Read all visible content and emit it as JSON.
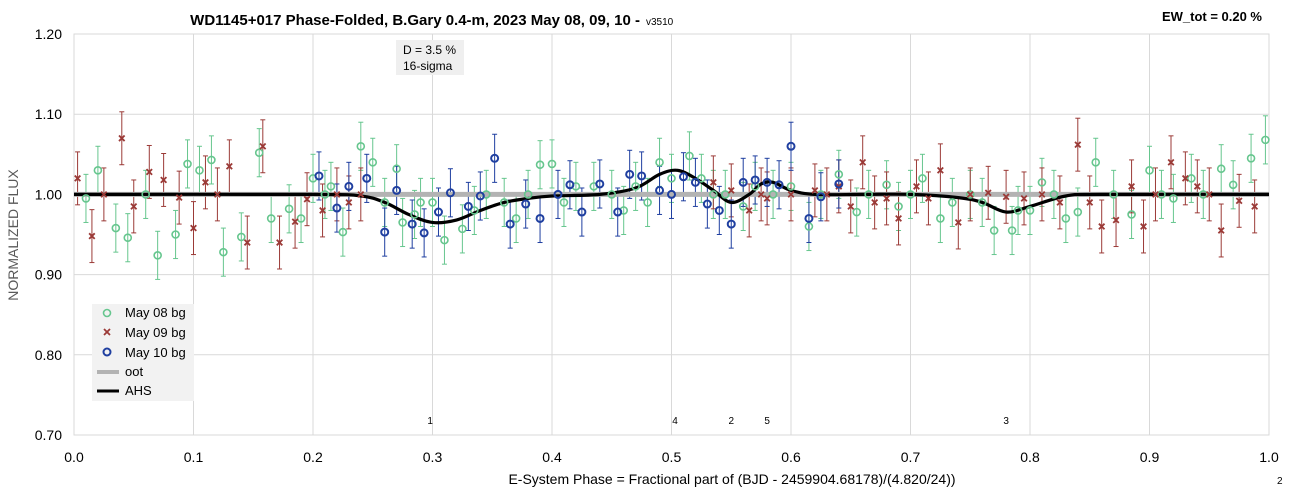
{
  "chart_data": {
    "type": "scatter",
    "title": "WD1145+017 Phase-Folded, B.Gary 0.4-m, 2023 May 08, 09, 10 -",
    "version_tag": "v3510",
    "ew_label": "EW_tot = 0.20 %",
    "xlabel": "E-System Phase = Fractional part of (BJD - 2459904.68178)/(4.820/24))",
    "ylabel": "NORMALIZED FLUX",
    "corner_note": "2",
    "xlim": [
      0.0,
      1.0
    ],
    "ylim": [
      0.7,
      1.2
    ],
    "x_ticks": [
      "0.0",
      "0.1",
      "0.2",
      "0.3",
      "0.4",
      "0.5",
      "0.6",
      "0.7",
      "0.8",
      "0.9",
      "1.0"
    ],
    "y_ticks": [
      "0.70",
      "0.80",
      "0.90",
      "1.00",
      "1.10",
      "1.20"
    ],
    "grid": true,
    "legend_position": "bottom-left",
    "annotation": {
      "line1": "D = 3.5 %",
      "line2": "16-sigma",
      "x": 0.3
    },
    "dip_markers": [
      {
        "label": "1",
        "x": 0.298
      },
      {
        "label": "4",
        "x": 0.503
      },
      {
        "label": "2",
        "x": 0.55
      },
      {
        "label": "5",
        "x": 0.58
      },
      {
        "label": "3",
        "x": 0.78
      }
    ],
    "colors": {
      "may08": "#66c68e",
      "may09": "#9b3a37",
      "may10": "#1f3fa0",
      "oot": "#b3b3b3",
      "ahs": "#000000"
    },
    "series": [
      {
        "name": "May 08 bg",
        "marker": "circle",
        "err": 0.03,
        "points": [
          [
            0.01,
            0.995
          ],
          [
            0.02,
            1.03
          ],
          [
            0.035,
            0.958
          ],
          [
            0.045,
            0.946
          ],
          [
            0.06,
            1.0
          ],
          [
            0.07,
            0.924
          ],
          [
            0.085,
            0.95
          ],
          [
            0.095,
            1.038
          ],
          [
            0.105,
            1.03
          ],
          [
            0.115,
            1.043
          ],
          [
            0.125,
            0.928
          ],
          [
            0.14,
            0.947
          ],
          [
            0.155,
            1.052
          ],
          [
            0.165,
            0.97
          ],
          [
            0.18,
            0.982
          ],
          [
            0.19,
            0.97
          ],
          [
            0.2,
            1.02
          ],
          [
            0.21,
            1.0
          ],
          [
            0.215,
            1.01
          ],
          [
            0.225,
            0.953
          ],
          [
            0.24,
            1.06
          ],
          [
            0.25,
            1.04
          ],
          [
            0.26,
            0.99
          ],
          [
            0.27,
            1.032
          ],
          [
            0.275,
            0.965
          ],
          [
            0.285,
            0.975
          ],
          [
            0.29,
            0.99
          ],
          [
            0.3,
            0.99
          ],
          [
            0.31,
            0.943
          ],
          [
            0.325,
            0.957
          ],
          [
            0.335,
            0.98
          ],
          [
            0.345,
            1.0
          ],
          [
            0.36,
            0.99
          ],
          [
            0.37,
            0.97
          ],
          [
            0.38,
            1.0
          ],
          [
            0.39,
            1.037
          ],
          [
            0.4,
            1.038
          ],
          [
            0.41,
            0.99
          ],
          [
            0.42,
            1.01
          ],
          [
            0.435,
            1.01
          ],
          [
            0.45,
            1.0
          ],
          [
            0.46,
            0.98
          ],
          [
            0.47,
            1.01
          ],
          [
            0.48,
            0.99
          ],
          [
            0.49,
            1.04
          ],
          [
            0.5,
            1.02
          ],
          [
            0.515,
            1.048
          ],
          [
            0.525,
            1.02
          ],
          [
            0.535,
            1.0
          ],
          [
            0.545,
            1.0
          ],
          [
            0.56,
            0.985
          ],
          [
            0.57,
            1.01
          ],
          [
            0.585,
            1.0
          ],
          [
            0.6,
            1.01
          ],
          [
            0.615,
            0.96
          ],
          [
            0.625,
            1.0
          ],
          [
            0.64,
            1.025
          ],
          [
            0.655,
            0.978
          ],
          [
            0.665,
            1.0
          ],
          [
            0.68,
            1.012
          ],
          [
            0.69,
            0.985
          ],
          [
            0.7,
            1.0
          ],
          [
            0.71,
            1.02
          ],
          [
            0.725,
            0.97
          ],
          [
            0.735,
            0.99
          ],
          [
            0.75,
            1.0
          ],
          [
            0.76,
            0.99
          ],
          [
            0.77,
            0.955
          ],
          [
            0.785,
            0.955
          ],
          [
            0.79,
            0.98
          ],
          [
            0.8,
            0.98
          ],
          [
            0.81,
            1.015
          ],
          [
            0.82,
            1.0
          ],
          [
            0.83,
            0.97
          ],
          [
            0.84,
            0.978
          ],
          [
            0.855,
            1.04
          ],
          [
            0.87,
            1.0
          ],
          [
            0.885,
            0.975
          ],
          [
            0.9,
            1.03
          ],
          [
            0.91,
            1.0
          ],
          [
            0.92,
            0.995
          ],
          [
            0.935,
            1.02
          ],
          [
            0.945,
            1.0
          ],
          [
            0.96,
            1.032
          ],
          [
            0.97,
            1.012
          ],
          [
            0.985,
            1.045
          ],
          [
            0.997,
            1.068
          ]
        ]
      },
      {
        "name": "May 09 bg",
        "marker": "x",
        "err": 0.033,
        "points": [
          [
            0.003,
            1.02
          ],
          [
            0.015,
            0.948
          ],
          [
            0.025,
            1.0
          ],
          [
            0.04,
            1.07
          ],
          [
            0.05,
            0.985
          ],
          [
            0.063,
            1.028
          ],
          [
            0.075,
            1.018
          ],
          [
            0.088,
            0.996
          ],
          [
            0.1,
            0.958
          ],
          [
            0.11,
            1.015
          ],
          [
            0.12,
            1.0
          ],
          [
            0.13,
            1.035
          ],
          [
            0.145,
            0.94
          ],
          [
            0.158,
            1.06
          ],
          [
            0.172,
            0.94
          ],
          [
            0.185,
            0.966
          ],
          [
            0.195,
            0.994
          ],
          [
            0.208,
            0.98
          ],
          [
            0.22,
            1.0
          ],
          [
            0.23,
            0.99
          ],
          [
            0.24,
            1.0
          ],
          [
            0.535,
            1.015
          ],
          [
            0.55,
            1.005
          ],
          [
            0.565,
            0.98
          ],
          [
            0.575,
            1.0
          ],
          [
            0.58,
            0.995
          ],
          [
            0.6,
            1.0
          ],
          [
            0.62,
            1.005
          ],
          [
            0.63,
            1.0
          ],
          [
            0.64,
            1.01
          ],
          [
            0.65,
            0.985
          ],
          [
            0.66,
            1.04
          ],
          [
            0.67,
            0.99
          ],
          [
            0.68,
            0.995
          ],
          [
            0.69,
            0.97
          ],
          [
            0.705,
            1.01
          ],
          [
            0.715,
            0.995
          ],
          [
            0.725,
            1.03
          ],
          [
            0.74,
            0.965
          ],
          [
            0.75,
            1.0
          ],
          [
            0.765,
            1.002
          ],
          [
            0.78,
            0.997
          ],
          [
            0.795,
            0.995
          ],
          [
            0.81,
            1.0
          ],
          [
            0.825,
            0.99
          ],
          [
            0.84,
            1.062
          ],
          [
            0.85,
            0.99
          ],
          [
            0.86,
            0.96
          ],
          [
            0.872,
            0.968
          ],
          [
            0.885,
            1.01
          ],
          [
            0.895,
            0.96
          ],
          [
            0.905,
            1.0
          ],
          [
            0.918,
            1.04
          ],
          [
            0.93,
            1.02
          ],
          [
            0.94,
            1.01
          ],
          [
            0.95,
            1.0
          ],
          [
            0.96,
            0.955
          ],
          [
            0.975,
            0.992
          ],
          [
            0.988,
            0.985
          ]
        ]
      },
      {
        "name": "May 10 bg",
        "marker": "circle-bold",
        "err": 0.03,
        "points": [
          [
            0.205,
            1.023
          ],
          [
            0.22,
            0.983
          ],
          [
            0.23,
            1.01
          ],
          [
            0.245,
            1.02
          ],
          [
            0.26,
            0.953
          ],
          [
            0.27,
            1.005
          ],
          [
            0.283,
            0.963
          ],
          [
            0.293,
            0.952
          ],
          [
            0.305,
            0.978
          ],
          [
            0.315,
            1.002
          ],
          [
            0.33,
            0.985
          ],
          [
            0.34,
            0.998
          ],
          [
            0.352,
            1.045
          ],
          [
            0.365,
            0.963
          ],
          [
            0.378,
            0.988
          ],
          [
            0.39,
            0.97
          ],
          [
            0.405,
            1.0
          ],
          [
            0.415,
            1.012
          ],
          [
            0.425,
            0.978
          ],
          [
            0.44,
            1.013
          ],
          [
            0.455,
            0.978
          ],
          [
            0.465,
            1.025
          ],
          [
            0.475,
            1.023
          ],
          [
            0.49,
            1.005
          ],
          [
            0.5,
            1.0
          ],
          [
            0.51,
            1.022
          ],
          [
            0.52,
            1.015
          ],
          [
            0.53,
            0.988
          ],
          [
            0.54,
            0.98
          ],
          [
            0.55,
            0.963
          ],
          [
            0.56,
            1.015
          ],
          [
            0.57,
            1.018
          ],
          [
            0.58,
            1.015
          ],
          [
            0.59,
            1.012
          ],
          [
            0.6,
            1.06
          ],
          [
            0.615,
            0.97
          ],
          [
            0.625,
            0.997
          ],
          [
            0.64,
            1.013
          ]
        ]
      }
    ],
    "lines": [
      {
        "name": "oot",
        "points": [
          [
            0.0,
            1.0
          ],
          [
            1.0,
            1.0
          ]
        ]
      },
      {
        "name": "AHS",
        "points": [
          [
            0.0,
            1.0
          ],
          [
            0.2,
            1.0
          ],
          [
            0.24,
            0.998
          ],
          [
            0.26,
            0.99
          ],
          [
            0.28,
            0.975
          ],
          [
            0.3,
            0.965
          ],
          [
            0.32,
            0.968
          ],
          [
            0.34,
            0.98
          ],
          [
            0.36,
            0.99
          ],
          [
            0.38,
            0.995
          ],
          [
            0.4,
            0.998
          ],
          [
            0.44,
            1.0
          ],
          [
            0.47,
            1.008
          ],
          [
            0.49,
            1.025
          ],
          [
            0.505,
            1.03
          ],
          [
            0.52,
            1.02
          ],
          [
            0.535,
            1.005
          ],
          [
            0.55,
            0.99
          ],
          [
            0.565,
            1.0
          ],
          [
            0.575,
            1.013
          ],
          [
            0.585,
            1.015
          ],
          [
            0.6,
            1.005
          ],
          [
            0.62,
            1.0
          ],
          [
            0.66,
            1.0
          ],
          [
            0.7,
            1.0
          ],
          [
            0.74,
            0.996
          ],
          [
            0.76,
            0.99
          ],
          [
            0.78,
            0.978
          ],
          [
            0.8,
            0.985
          ],
          [
            0.83,
            0.998
          ],
          [
            0.86,
            1.0
          ],
          [
            1.0,
            1.0
          ]
        ]
      }
    ]
  }
}
